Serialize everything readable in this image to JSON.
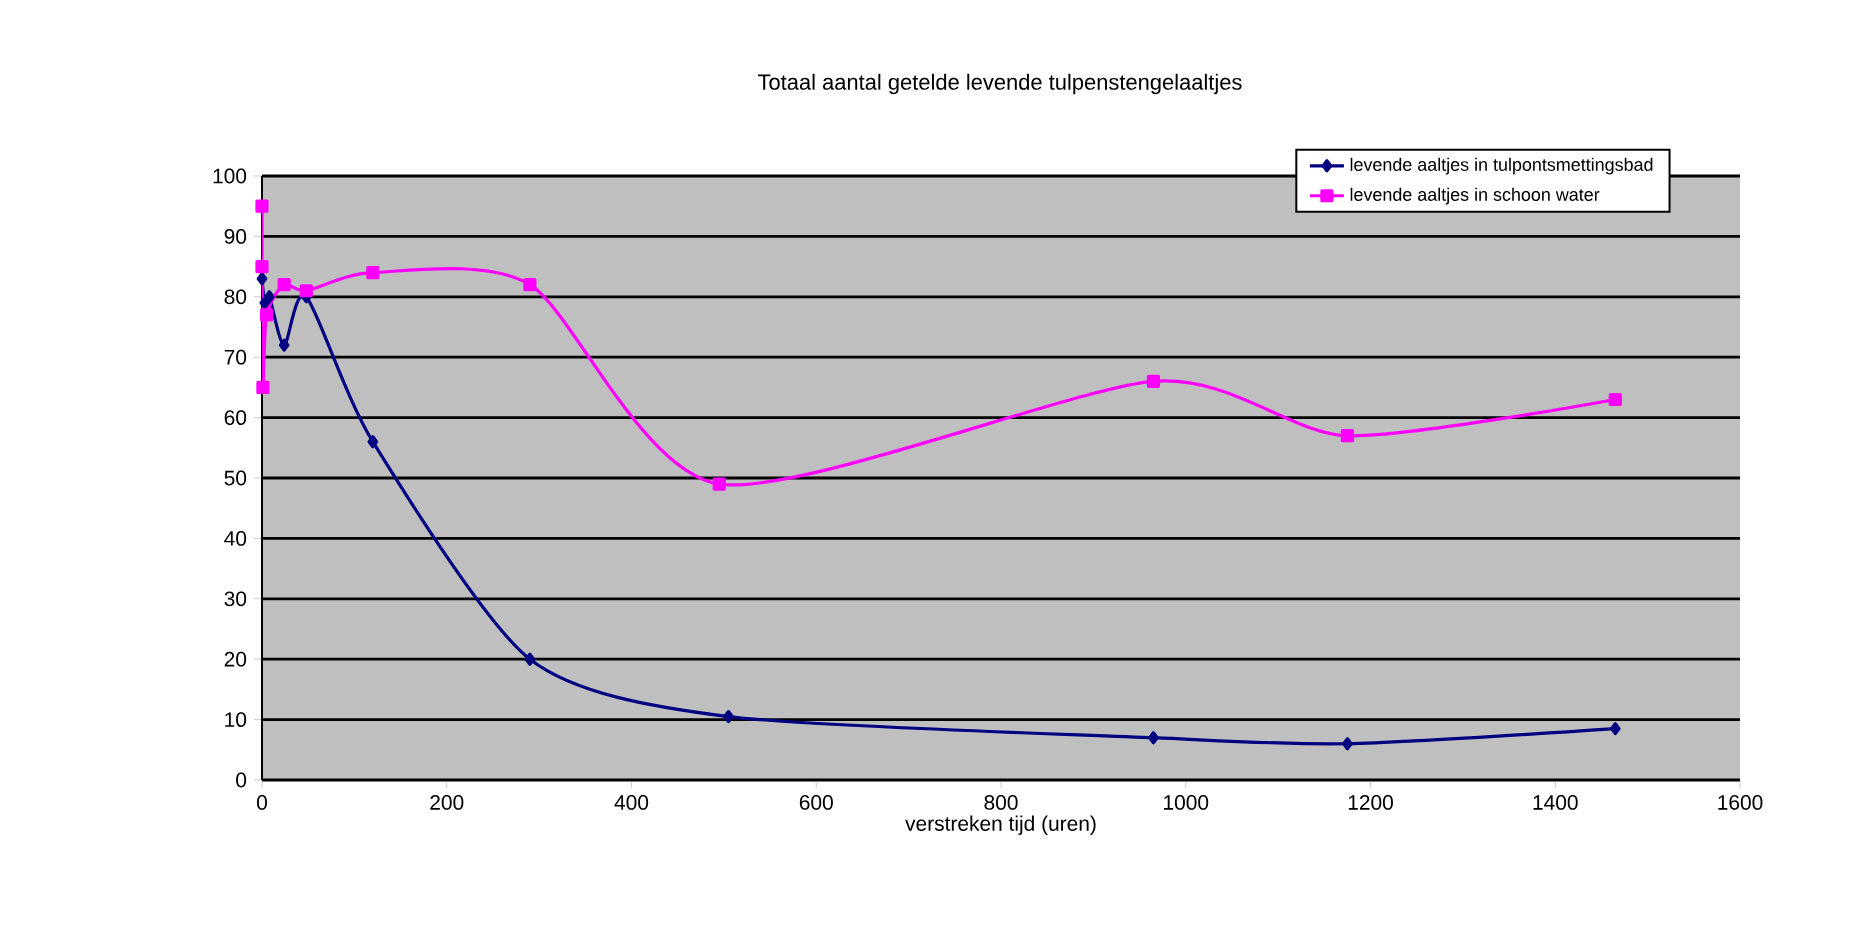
{
  "chart_data": {
    "type": "line",
    "title": "Totaal aantal getelde levende tulpenstengelaaltjes",
    "xlabel": "verstreken tijd (uren)",
    "xlim": [
      0,
      1600
    ],
    "xticks": [
      0,
      200,
      400,
      600,
      800,
      1000,
      1200,
      1400,
      1600
    ],
    "ylim": [
      0,
      100
    ],
    "yticks": [
      0,
      10,
      20,
      30,
      40,
      50,
      60,
      70,
      80,
      90,
      100
    ],
    "grid": "y",
    "legend": "top right",
    "line_style": "solid",
    "series": [
      {
        "name": "levende aaltjes in tulpontsmettingsbad",
        "color": "#000080",
        "marker": "diamond",
        "x": [
          0,
          3,
          8,
          24,
          48,
          120,
          290,
          505,
          965,
          1175,
          1465
        ],
        "values": [
          83,
          79,
          80,
          72,
          80,
          56,
          20,
          10.5,
          7,
          6,
          8.5
        ]
      },
      {
        "name": "levende aaltjes in schoon water",
        "color": "#ff00ff",
        "marker": "square",
        "x": [
          0,
          0,
          1,
          5,
          24,
          48,
          120,
          290,
          495,
          965,
          1175,
          1465
        ],
        "values": [
          95,
          85,
          65,
          77,
          82,
          81,
          84,
          82,
          49,
          66,
          57,
          63
        ]
      }
    ]
  }
}
